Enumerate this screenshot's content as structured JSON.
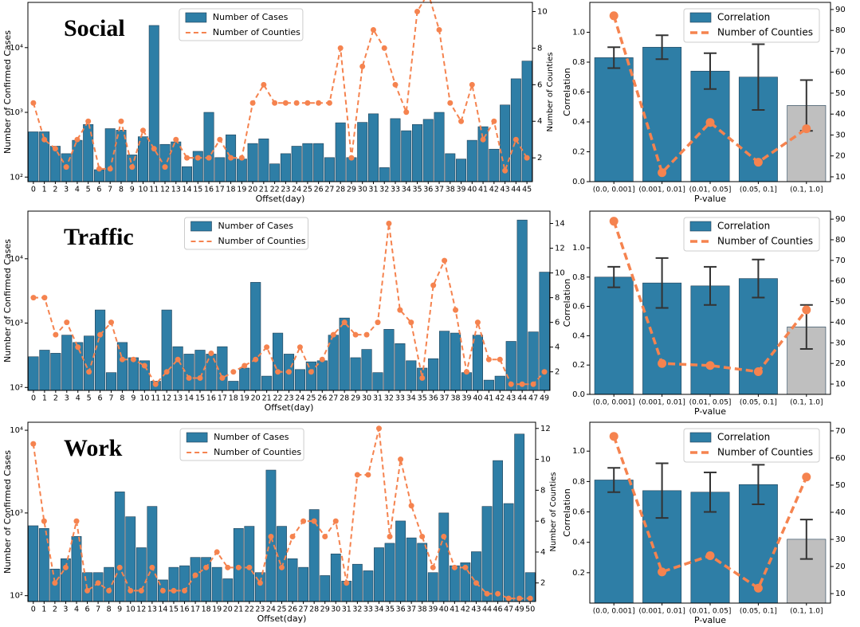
{
  "chart_data": [
    {
      "type": "bar",
      "title": "Social",
      "xlabel": "Offset(day)",
      "ylabel": "Number of Confirmed Cases",
      "y2label": "Number of Counties",
      "categories": [
        "0",
        "1",
        "2",
        "3",
        "4",
        "5",
        "6",
        "7",
        "8",
        "9",
        "10",
        "11",
        "12",
        "13",
        "14",
        "15",
        "16",
        "17",
        "18",
        "19",
        "20",
        "21",
        "22",
        "23",
        "24",
        "25",
        "26",
        "27",
        "28",
        "29",
        "30",
        "31",
        "32",
        "33",
        "34",
        "35",
        "36",
        "37",
        "38",
        "39",
        "40",
        "41",
        "42",
        "43",
        "44",
        "45"
      ],
      "series": [
        {
          "name": "Number of Cases",
          "type": "bar",
          "color": "#2e7ea6",
          "values": [
            500,
            500,
            300,
            230,
            370,
            650,
            130,
            560,
            530,
            220,
            420,
            22000,
            320,
            350,
            145,
            250,
            1000,
            200,
            450,
            190,
            330,
            390,
            160,
            230,
            300,
            330,
            330,
            200,
            690,
            200,
            700,
            950,
            140,
            800,
            520,
            650,
            780,
            1000,
            230,
            190,
            370,
            600,
            270,
            1300,
            3300,
            6200
          ]
        },
        {
          "name": "Number of Counties",
          "type": "line",
          "axis": "y2",
          "color": "#f5834f",
          "values": [
            5,
            3,
            2.5,
            1.5,
            3,
            4,
            1.4,
            1.4,
            4,
            1.5,
            3.5,
            2.5,
            1.5,
            3,
            2,
            2,
            2,
            3,
            2,
            2,
            5,
            6,
            5,
            5,
            5,
            5,
            5,
            5,
            8,
            2,
            7,
            9,
            8,
            6,
            4.5,
            10,
            11,
            9,
            5,
            4,
            6,
            3,
            4,
            1.3,
            3,
            2
          ]
        }
      ],
      "log_y": true,
      "ylim": [
        85,
        50000
      ],
      "yticks": [
        {
          "value": 100,
          "label": "10²"
        },
        {
          "value": 1000,
          "label": "10³"
        },
        {
          "value": 10000,
          "label": "10⁴"
        }
      ],
      "y2lim": [
        0.7,
        10.5
      ],
      "y2ticks": [
        2,
        4,
        6,
        8,
        10
      ],
      "legend": "upper center"
    },
    {
      "type": "bar",
      "xlabel": "P-value",
      "ylabel": "Correlation",
      "categories": [
        "(0.0, 0.001]",
        "(0.001, 0.01]",
        "(0.01, 0.05]",
        "(0.05, 0.1]",
        "(0.1, 1.0]"
      ],
      "series": [
        {
          "name": "Correlation",
          "type": "bar",
          "color": "#2e7ea6",
          "colors": [
            "#2e7ea6",
            "#2e7ea6",
            "#2e7ea6",
            "#2e7ea6",
            "#bfbfbf"
          ],
          "values": [
            0.83,
            0.9,
            0.74,
            0.7,
            0.51
          ],
          "errors": [
            0.07,
            0.08,
            0.12,
            0.22,
            0.17
          ]
        },
        {
          "name": "Number of Counties",
          "type": "line",
          "axis": "y2",
          "color": "#f5834f",
          "values": [
            87,
            12,
            36,
            17,
            33
          ]
        }
      ],
      "ylim": [
        0,
        1.2
      ],
      "yticks": [
        {
          "value": 0,
          "label": "0.0"
        },
        0.2,
        0.4,
        0.6,
        0.8,
        {
          "value": 1,
          "label": "1.0"
        }
      ],
      "y2lim": [
        7.7,
        93.4
      ],
      "y2ticks": [
        10,
        20,
        30,
        40,
        50,
        60,
        70,
        80,
        90
      ],
      "legend": "upper right"
    },
    {
      "type": "bar",
      "title": "Traffic",
      "xlabel": "Offset(day)",
      "ylabel": "Number of Confirmed Cases",
      "categories": [
        "0",
        "1",
        "2",
        "3",
        "4",
        "5",
        "6",
        "7",
        "8",
        "9",
        "10",
        "11",
        "12",
        "13",
        "14",
        "15",
        "16",
        "17",
        "18",
        "19",
        "20",
        "21",
        "22",
        "23",
        "24",
        "25",
        "26",
        "27",
        "28",
        "29",
        "30",
        "31",
        "32",
        "33",
        "34",
        "35",
        "36",
        "37",
        "38",
        "39",
        "40",
        "41",
        "42",
        "43",
        "44",
        "47",
        "49"
      ],
      "series": [
        {
          "name": "Number of Cases",
          "type": "bar",
          "color": "#2e7ea6",
          "values": [
            300,
            380,
            340,
            650,
            500,
            630,
            1600,
            170,
            500,
            290,
            260,
            125,
            1600,
            430,
            330,
            380,
            330,
            430,
            125,
            200,
            4300,
            150,
            700,
            330,
            190,
            250,
            260,
            650,
            1200,
            290,
            390,
            170,
            800,
            480,
            260,
            200,
            280,
            750,
            700,
            170,
            650,
            130,
            150,
            520,
            40000,
            730,
            6200
          ]
        },
        {
          "name": "Number of Counties",
          "type": "line",
          "axis": "y2",
          "color": "#f5834f",
          "values": [
            8,
            8,
            5,
            6,
            4,
            2,
            5,
            6,
            3,
            3,
            2.5,
            1,
            2,
            3,
            1.5,
            1.5,
            3.5,
            1.5,
            2,
            2.5,
            3,
            4,
            2,
            2,
            4,
            2,
            3,
            5,
            6,
            5,
            5,
            6,
            14,
            7,
            6,
            1.5,
            9,
            11,
            7,
            2,
            6,
            3,
            3,
            1,
            1,
            1,
            2
          ]
        }
      ],
      "log_y": true,
      "ylim": [
        90,
        55000
      ],
      "yticks": [
        {
          "value": 100,
          "label": "10²"
        },
        {
          "value": 1000,
          "label": "10³"
        },
        {
          "value": 10000,
          "label": "10⁴"
        }
      ],
      "y2lim": [
        0.5,
        15
      ],
      "y2ticks": [
        2,
        4,
        6,
        8,
        10,
        12,
        14
      ],
      "legend": "upper center"
    },
    {
      "type": "bar",
      "xlabel": "P-value",
      "ylabel": "Correlation",
      "categories": [
        "(0.0, 0.001]",
        "(0.001, 0.01]",
        "(0.01, 0.05]",
        "(0.05, 0.1]",
        "(0.1, 1.0]"
      ],
      "series": [
        {
          "name": "Correlation",
          "type": "bar",
          "color": "#2e7ea6",
          "colors": [
            "#2e7ea6",
            "#2e7ea6",
            "#2e7ea6",
            "#2e7ea6",
            "#bfbfbf"
          ],
          "values": [
            0.8,
            0.76,
            0.74,
            0.79,
            0.46
          ],
          "errors": [
            0.07,
            0.17,
            0.13,
            0.13,
            0.15
          ]
        },
        {
          "name": "Number of Counties",
          "type": "line",
          "axis": "y2",
          "color": "#f5834f",
          "values": [
            89,
            20,
            19,
            16,
            46
          ]
        }
      ],
      "ylim": [
        0,
        1.25
      ],
      "yticks": [
        {
          "value": 0,
          "label": "0.0"
        },
        0.2,
        0.4,
        0.6,
        0.8,
        {
          "value": 1,
          "label": "1.0"
        }
      ],
      "y2lim": [
        5,
        93.9
      ],
      "y2ticks": [
        10,
        20,
        30,
        40,
        50,
        60,
        70,
        80,
        90
      ],
      "legend": "upper right"
    },
    {
      "type": "bar",
      "title": "Work",
      "xlabel": "Offset(day)",
      "ylabel": "Number of Confirmed Cases",
      "y2label": "Number of Counties",
      "categories": [
        "0",
        "1",
        "2",
        "3",
        "4",
        "6",
        "7",
        "8",
        "9",
        "10",
        "12",
        "13",
        "14",
        "15",
        "16",
        "17",
        "18",
        "19",
        "20",
        "21",
        "22",
        "23",
        "24",
        "25",
        "26",
        "27",
        "28",
        "29",
        "30",
        "31",
        "32",
        "33",
        "34",
        "35",
        "36",
        "37",
        "38",
        "39",
        "40",
        "41",
        "42",
        "43",
        "44",
        "46",
        "47",
        "49",
        "50"
      ],
      "series": [
        {
          "name": "Number of Cases",
          "type": "bar",
          "color": "#2e7ea6",
          "values": [
            700,
            650,
            210,
            280,
            520,
            190,
            190,
            220,
            1800,
            900,
            380,
            1200,
            155,
            220,
            230,
            290,
            290,
            220,
            160,
            650,
            690,
            190,
            3300,
            690,
            280,
            220,
            1100,
            175,
            320,
            150,
            240,
            200,
            380,
            430,
            800,
            500,
            430,
            190,
            1000,
            230,
            250,
            340,
            1200,
            4300,
            1300,
            9000,
            190
          ]
        },
        {
          "name": "Number of Counties",
          "type": "line",
          "axis": "y2",
          "color": "#f5834f",
          "values": [
            11,
            6,
            2,
            3,
            6,
            1.5,
            2,
            1.5,
            3,
            1.5,
            1.5,
            3,
            1.5,
            1.5,
            1.5,
            2.5,
            3,
            4,
            3,
            3,
            3,
            2,
            5,
            3,
            5,
            6,
            6,
            5,
            6,
            2,
            9,
            9,
            12,
            5,
            10,
            7,
            5,
            3,
            5,
            3,
            3,
            2,
            1.3,
            1.3,
            1,
            1,
            1
          ]
        }
      ],
      "log_y": true,
      "ylim": [
        85,
        12500
      ],
      "yticks": [
        {
          "value": 100,
          "label": "10²"
        },
        {
          "value": 1000,
          "label": "10³"
        },
        {
          "value": 10000,
          "label": "10⁴"
        }
      ],
      "y2lim": [
        0.8,
        12.4
      ],
      "y2ticks": [
        2,
        4,
        6,
        8,
        10,
        12
      ],
      "legend": "upper center"
    },
    {
      "type": "bar",
      "xlabel": "P-value",
      "ylabel": "Correlation",
      "categories": [
        "(0.0, 0.001]",
        "(0.001, 0.01]",
        "(0.01, 0.05]",
        "(0.05, 0.1]",
        "(0.1, 1.0]"
      ],
      "series": [
        {
          "name": "Correlation",
          "type": "bar",
          "color": "#2e7ea6",
          "colors": [
            "#2e7ea6",
            "#2e7ea6",
            "#2e7ea6",
            "#2e7ea6",
            "#bfbfbf"
          ],
          "values": [
            0.81,
            0.74,
            0.73,
            0.78,
            0.42
          ],
          "errors": [
            0.08,
            0.18,
            0.13,
            0.13,
            0.13
          ]
        },
        {
          "name": "Number of Counties",
          "type": "line",
          "axis": "y2",
          "color": "#f5834f",
          "values": [
            68,
            18,
            24,
            12,
            53
          ]
        }
      ],
      "ylim": [
        0,
        1.19
      ],
      "yticks": [
        0.2,
        0.4,
        0.6,
        0.8,
        {
          "value": 1,
          "label": "1.0"
        }
      ],
      "y2lim": [
        6.5,
        73.2
      ],
      "y2ticks": [
        10,
        20,
        30,
        40,
        50,
        60,
        70
      ],
      "legend": "upper right"
    }
  ]
}
